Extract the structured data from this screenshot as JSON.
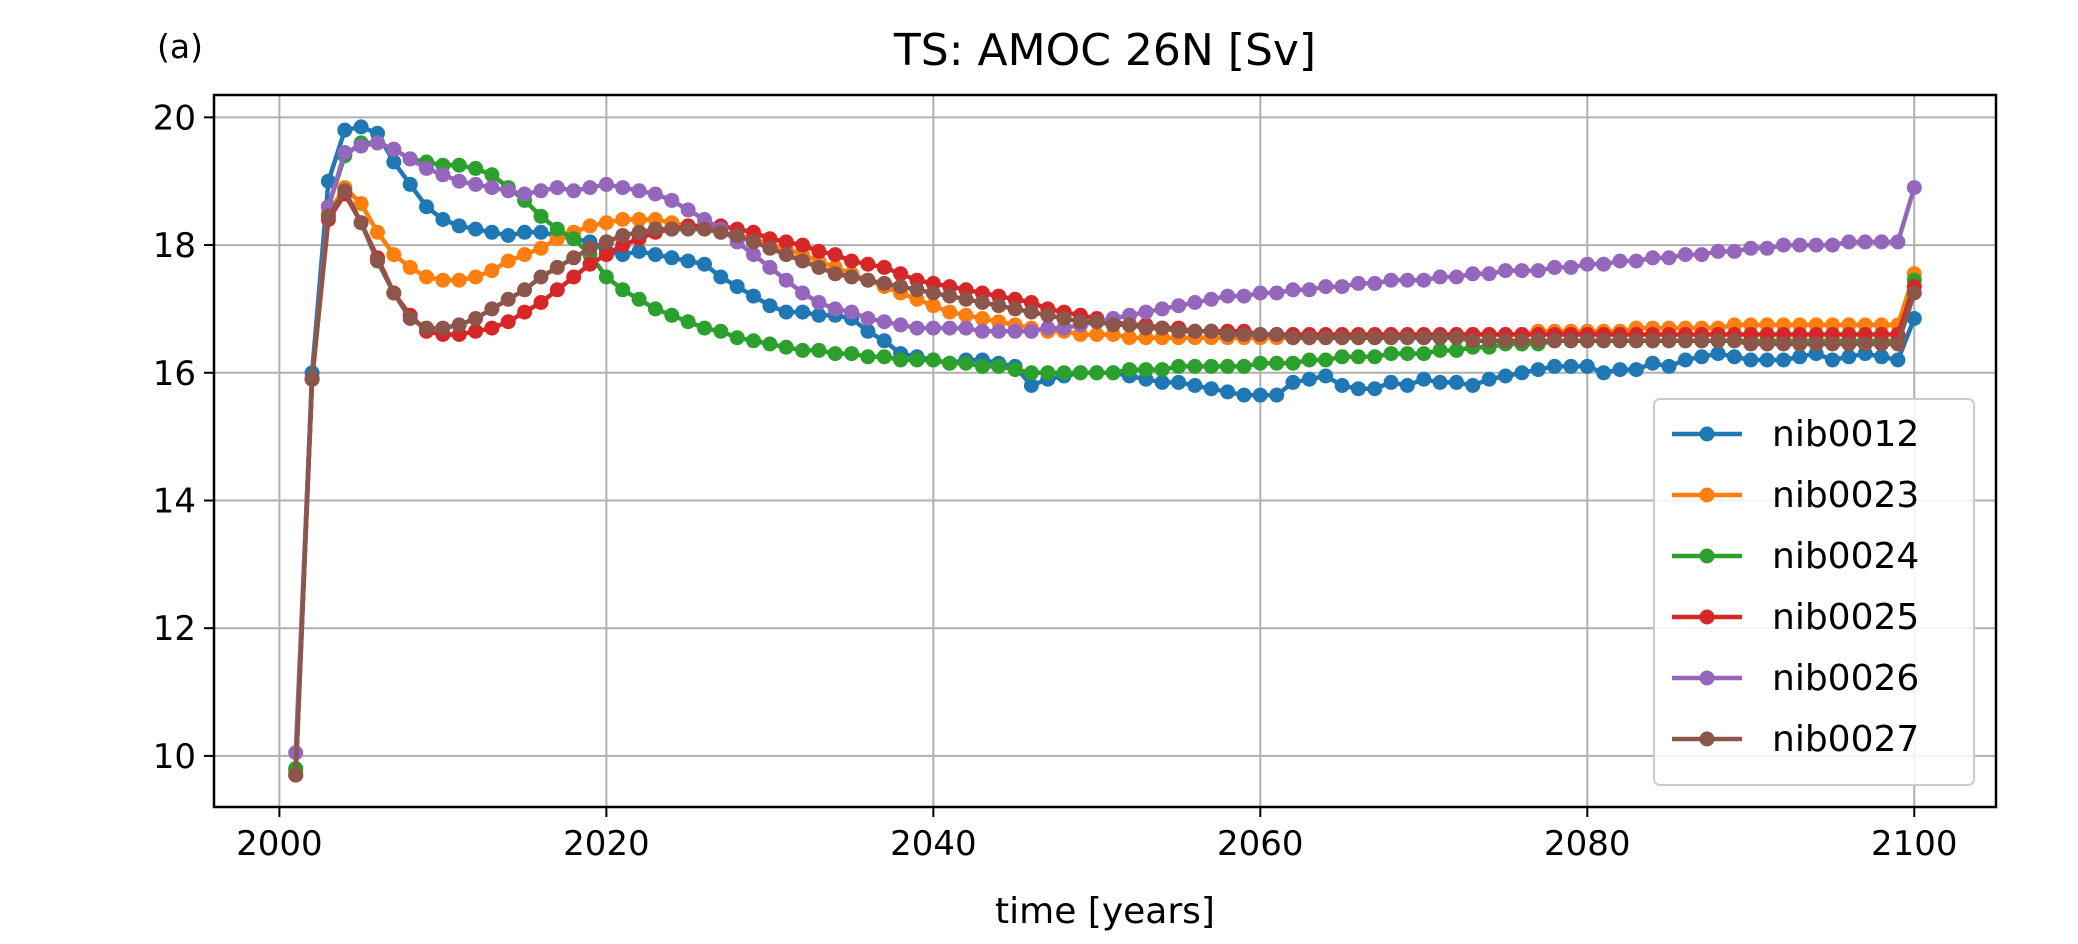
{
  "panel_label": "(a)",
  "chart_data": {
    "type": "line",
    "title": "TS: AMOC 26N [Sv]",
    "xlabel": "time [years]",
    "ylabel": "",
    "xlim": [
      1996,
      2105
    ],
    "ylim": [
      9.2,
      20.35
    ],
    "xticks": [
      2000,
      2020,
      2040,
      2060,
      2080,
      2100
    ],
    "yticks": [
      10,
      12,
      14,
      16,
      18,
      20
    ],
    "grid": true,
    "legend_position": "lower-right",
    "x_start": 2001,
    "series": [
      {
        "name": "nib0012",
        "color": "#1f77b4",
        "values": [
          9.8,
          16.0,
          19.0,
          19.8,
          19.85,
          19.75,
          19.3,
          18.95,
          18.6,
          18.4,
          18.3,
          18.25,
          18.2,
          18.15,
          18.2,
          18.2,
          18.15,
          18.1,
          18.05,
          17.9,
          17.85,
          17.9,
          17.85,
          17.8,
          17.75,
          17.7,
          17.5,
          17.35,
          17.2,
          17.05,
          16.95,
          16.95,
          16.9,
          16.9,
          16.85,
          16.65,
          16.5,
          16.3,
          16.25,
          16.2,
          16.15,
          16.2,
          16.2,
          16.15,
          16.1,
          15.8,
          15.9,
          15.95,
          16.0,
          16.0,
          16.0,
          15.95,
          15.9,
          15.85,
          15.85,
          15.8,
          15.75,
          15.7,
          15.65,
          15.65,
          15.65,
          15.85,
          15.9,
          15.95,
          15.8,
          15.75,
          15.75,
          15.85,
          15.8,
          15.9,
          15.85,
          15.85,
          15.8,
          15.9,
          15.95,
          16.0,
          16.05,
          16.1,
          16.1,
          16.1,
          16.0,
          16.05,
          16.05,
          16.15,
          16.1,
          16.2,
          16.25,
          16.3,
          16.25,
          16.2,
          16.2,
          16.2,
          16.25,
          16.3,
          16.2,
          16.25,
          16.3,
          16.25,
          16.2,
          16.85
        ]
      },
      {
        "name": "nib0023",
        "color": "#ff7f0e",
        "values": [
          9.75,
          15.9,
          18.5,
          18.9,
          18.65,
          18.2,
          17.85,
          17.65,
          17.5,
          17.45,
          17.45,
          17.5,
          17.6,
          17.75,
          17.85,
          17.95,
          18.1,
          18.2,
          18.3,
          18.35,
          18.4,
          18.4,
          18.4,
          18.35,
          18.3,
          18.25,
          18.2,
          18.15,
          18.1,
          18.0,
          17.95,
          17.85,
          17.75,
          17.65,
          17.55,
          17.45,
          17.35,
          17.25,
          17.15,
          17.05,
          16.95,
          16.9,
          16.85,
          16.8,
          16.75,
          16.7,
          16.65,
          16.65,
          16.6,
          16.6,
          16.6,
          16.55,
          16.55,
          16.55,
          16.55,
          16.55,
          16.55,
          16.55,
          16.55,
          16.55,
          16.55,
          16.55,
          16.55,
          16.55,
          16.55,
          16.55,
          16.55,
          16.55,
          16.55,
          16.55,
          16.55,
          16.6,
          16.6,
          16.6,
          16.6,
          16.6,
          16.65,
          16.65,
          16.65,
          16.65,
          16.65,
          16.65,
          16.7,
          16.7,
          16.7,
          16.7,
          16.7,
          16.7,
          16.75,
          16.75,
          16.75,
          16.75,
          16.75,
          16.75,
          16.75,
          16.75,
          16.75,
          16.75,
          16.75,
          17.55
        ]
      },
      {
        "name": "nib0024",
        "color": "#2ca02c",
        "values": [
          9.8,
          15.9,
          18.6,
          19.4,
          19.6,
          19.6,
          19.5,
          19.35,
          19.3,
          19.25,
          19.25,
          19.2,
          19.1,
          18.9,
          18.7,
          18.45,
          18.25,
          18.1,
          17.85,
          17.5,
          17.3,
          17.15,
          17.0,
          16.9,
          16.8,
          16.7,
          16.65,
          16.55,
          16.5,
          16.45,
          16.4,
          16.35,
          16.35,
          16.3,
          16.3,
          16.25,
          16.25,
          16.2,
          16.2,
          16.2,
          16.15,
          16.15,
          16.1,
          16.1,
          16.05,
          16.0,
          16.0,
          16.0,
          16.0,
          16.0,
          16.0,
          16.05,
          16.05,
          16.05,
          16.1,
          16.1,
          16.1,
          16.1,
          16.1,
          16.15,
          16.15,
          16.15,
          16.2,
          16.2,
          16.25,
          16.25,
          16.25,
          16.3,
          16.3,
          16.3,
          16.35,
          16.35,
          16.4,
          16.4,
          16.45,
          16.45,
          16.45,
          16.5,
          16.5,
          16.5,
          16.5,
          16.5,
          16.5,
          16.5,
          16.5,
          16.5,
          16.5,
          16.5,
          16.5,
          16.5,
          16.5,
          16.5,
          16.5,
          16.5,
          16.5,
          16.5,
          16.5,
          16.5,
          16.5,
          17.45
        ]
      },
      {
        "name": "nib0025",
        "color": "#d62728",
        "values": [
          9.7,
          15.9,
          18.4,
          18.8,
          18.35,
          17.8,
          17.25,
          16.9,
          16.65,
          16.6,
          16.6,
          16.65,
          16.7,
          16.8,
          16.95,
          17.1,
          17.3,
          17.5,
          17.7,
          17.85,
          18.0,
          18.1,
          18.2,
          18.25,
          18.3,
          18.3,
          18.3,
          18.25,
          18.2,
          18.1,
          18.05,
          18.0,
          17.9,
          17.85,
          17.75,
          17.7,
          17.65,
          17.55,
          17.45,
          17.4,
          17.35,
          17.3,
          17.25,
          17.2,
          17.15,
          17.1,
          17.0,
          16.95,
          16.9,
          16.85,
          16.8,
          16.75,
          16.75,
          16.7,
          16.7,
          16.65,
          16.65,
          16.65,
          16.65,
          16.6,
          16.6,
          16.6,
          16.6,
          16.6,
          16.6,
          16.6,
          16.6,
          16.6,
          16.6,
          16.6,
          16.6,
          16.6,
          16.6,
          16.6,
          16.6,
          16.6,
          16.6,
          16.6,
          16.6,
          16.6,
          16.6,
          16.6,
          16.6,
          16.6,
          16.6,
          16.6,
          16.6,
          16.6,
          16.6,
          16.6,
          16.6,
          16.6,
          16.6,
          16.6,
          16.6,
          16.6,
          16.6,
          16.6,
          16.6,
          17.35
        ]
      },
      {
        "name": "nib0026",
        "color": "#9467bd",
        "values": [
          10.05,
          15.9,
          18.6,
          19.45,
          19.55,
          19.6,
          19.5,
          19.35,
          19.2,
          19.1,
          19.0,
          18.95,
          18.9,
          18.85,
          18.8,
          18.85,
          18.9,
          18.85,
          18.9,
          18.95,
          18.9,
          18.85,
          18.8,
          18.7,
          18.55,
          18.4,
          18.25,
          18.05,
          17.85,
          17.65,
          17.45,
          17.25,
          17.1,
          17.0,
          16.95,
          16.85,
          16.8,
          16.75,
          16.7,
          16.7,
          16.7,
          16.7,
          16.65,
          16.65,
          16.65,
          16.65,
          16.7,
          16.7,
          16.75,
          16.8,
          16.85,
          16.9,
          16.95,
          17.0,
          17.05,
          17.1,
          17.15,
          17.2,
          17.2,
          17.25,
          17.25,
          17.3,
          17.3,
          17.35,
          17.35,
          17.4,
          17.4,
          17.45,
          17.45,
          17.45,
          17.5,
          17.5,
          17.55,
          17.55,
          17.6,
          17.6,
          17.6,
          17.65,
          17.65,
          17.7,
          17.7,
          17.75,
          17.75,
          17.8,
          17.8,
          17.85,
          17.85,
          17.9,
          17.9,
          17.95,
          17.95,
          18.0,
          18.0,
          18.0,
          18.0,
          18.05,
          18.05,
          18.05,
          18.05,
          18.9
        ]
      },
      {
        "name": "nib0027",
        "color": "#8c564b",
        "values": [
          9.7,
          15.9,
          18.45,
          18.85,
          18.35,
          17.75,
          17.25,
          16.85,
          16.7,
          16.7,
          16.75,
          16.85,
          17.0,
          17.15,
          17.3,
          17.5,
          17.65,
          17.8,
          17.95,
          18.05,
          18.15,
          18.2,
          18.25,
          18.25,
          18.25,
          18.25,
          18.2,
          18.15,
          18.05,
          17.95,
          17.85,
          17.75,
          17.65,
          17.55,
          17.5,
          17.45,
          17.4,
          17.35,
          17.3,
          17.25,
          17.2,
          17.15,
          17.1,
          17.05,
          17.0,
          16.95,
          16.9,
          16.85,
          16.8,
          16.8,
          16.75,
          16.75,
          16.7,
          16.7,
          16.65,
          16.65,
          16.65,
          16.6,
          16.6,
          16.6,
          16.6,
          16.55,
          16.55,
          16.55,
          16.55,
          16.55,
          16.55,
          16.55,
          16.55,
          16.55,
          16.55,
          16.55,
          16.5,
          16.5,
          16.5,
          16.5,
          16.5,
          16.5,
          16.5,
          16.5,
          16.5,
          16.5,
          16.5,
          16.5,
          16.5,
          16.5,
          16.5,
          16.5,
          16.5,
          16.45,
          16.45,
          16.45,
          16.45,
          16.45,
          16.45,
          16.45,
          16.45,
          16.45,
          16.45,
          17.25
        ]
      }
    ]
  }
}
